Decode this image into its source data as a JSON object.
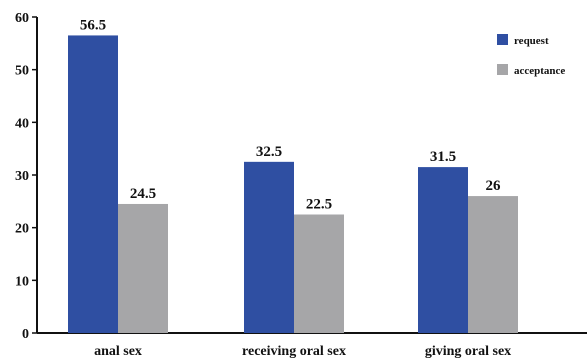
{
  "chart_data": {
    "type": "bar",
    "categories": [
      "anal sex",
      "receiving oral sex",
      "giving oral sex"
    ],
    "series": [
      {
        "name": "request",
        "values": [
          56.5,
          32.5,
          31.5
        ],
        "labels": [
          "56.5",
          "32.5",
          "31.5"
        ],
        "color": "#2f4fa2"
      },
      {
        "name": "acceptance",
        "values": [
          24.5,
          22.5,
          26
        ],
        "labels": [
          "24.5",
          "22.5",
          "26"
        ],
        "color": "#a6a6a8"
      }
    ],
    "ylim": [
      0,
      60
    ],
    "yticks": [
      0,
      10,
      20,
      30,
      40,
      50,
      60
    ],
    "xlabel": "",
    "ylabel": "",
    "title": "",
    "legend_position": "top-right",
    "grid": false
  }
}
